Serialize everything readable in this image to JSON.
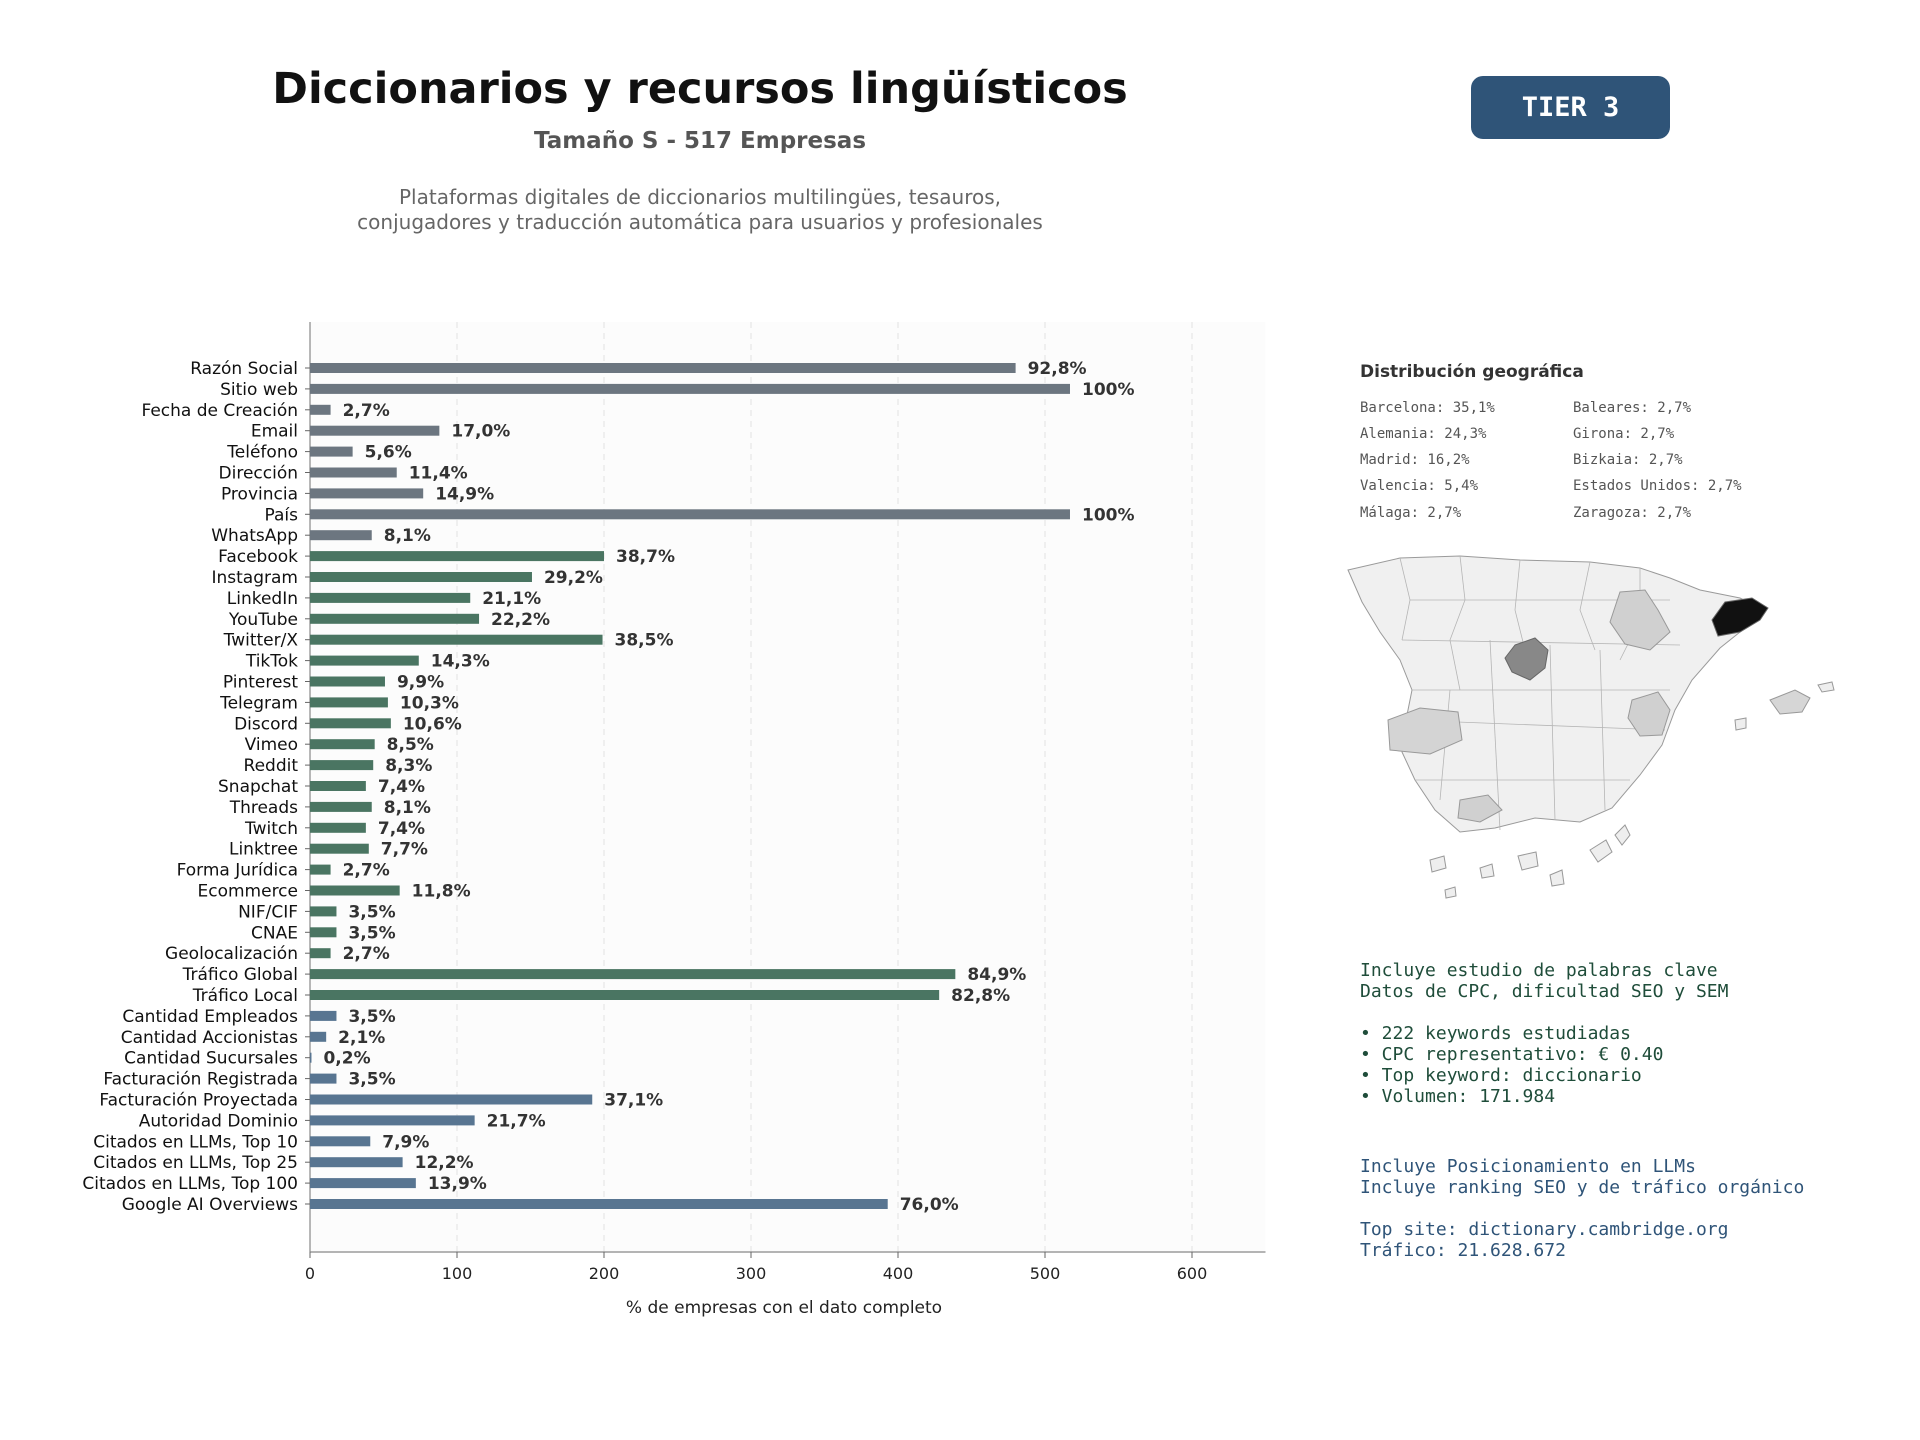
{
  "header": {
    "title": "Diccionarios y recursos lingüísticos",
    "subtitle": "Tamaño S - 517 Empresas",
    "description_line1": "Plataformas digitales de diccionarios multilingües, tesauros,",
    "description_line2": "conjugadores y traducción automática para usuarios y profesionales",
    "tier": "TIER 3"
  },
  "colors": {
    "gray": "#6c7680",
    "green": "#4a7562",
    "blue": "#587591",
    "tier_bg": "#2f5478"
  },
  "chart_data": {
    "type": "bar",
    "orientation": "horizontal",
    "xlabel": "% de empresas con el dato completo",
    "xlim": [
      0,
      650
    ],
    "xticks": [
      0,
      100,
      200,
      300,
      400,
      500,
      600
    ],
    "grid": true,
    "categories": [
      "Razón Social",
      "Sitio web",
      "Fecha de Creación",
      "Email",
      "Teléfono",
      "Dirección",
      "Provincia",
      "País",
      "WhatsApp",
      "Facebook",
      "Instagram",
      "LinkedIn",
      "YouTube",
      "Twitter/X",
      "TikTok",
      "Pinterest",
      "Telegram",
      "Discord",
      "Vimeo",
      "Reddit",
      "Snapchat",
      "Threads",
      "Twitch",
      "Linktree",
      "Forma Jurídica",
      "Ecommerce",
      "NIF/CIF",
      "CNAE",
      "Geolocalización",
      "Tráfico Global",
      "Tráfico Local",
      "Cantidad Empleados",
      "Cantidad Accionistas",
      "Cantidad Sucursales",
      "Facturación Registrada",
      "Facturación Proyectada",
      "Autoridad Dominio",
      "Citados en LLMs, Top 10",
      "Citados en LLMs, Top 25",
      "Citados en LLMs, Top 100",
      "Google AI Overviews"
    ],
    "values": [
      480,
      517,
      14,
      88,
      29,
      59,
      77,
      517,
      42,
      200,
      151,
      109,
      115,
      199,
      74,
      51,
      53,
      55,
      44,
      43,
      38,
      42,
      38,
      40,
      14,
      61,
      18,
      18,
      14,
      439,
      428,
      18,
      11,
      1,
      18,
      192,
      112,
      41,
      63,
      72,
      393
    ],
    "labels": [
      "92,8%",
      "100%",
      "2,7%",
      "17,0%",
      "5,6%",
      "11,4%",
      "14,9%",
      "100%",
      "8,1%",
      "38,7%",
      "29,2%",
      "21,1%",
      "22,2%",
      "38,5%",
      "14,3%",
      "9,9%",
      "10,3%",
      "10,6%",
      "8,5%",
      "8,3%",
      "7,4%",
      "8,1%",
      "7,4%",
      "7,7%",
      "2,7%",
      "11,8%",
      "3,5%",
      "3,5%",
      "2,7%",
      "84,9%",
      "82,8%",
      "3,5%",
      "2,1%",
      "0,2%",
      "3,5%",
      "37,1%",
      "21,7%",
      "7,9%",
      "12,2%",
      "13,9%",
      "76,0%"
    ],
    "groups": [
      "gray",
      "gray",
      "gray",
      "gray",
      "gray",
      "gray",
      "gray",
      "gray",
      "gray",
      "green",
      "green",
      "green",
      "green",
      "green",
      "green",
      "green",
      "green",
      "green",
      "green",
      "green",
      "green",
      "green",
      "green",
      "green",
      "green",
      "green",
      "green",
      "green",
      "green",
      "green",
      "green",
      "blue",
      "blue",
      "blue",
      "blue",
      "blue",
      "blue",
      "blue",
      "blue",
      "blue",
      "blue"
    ]
  },
  "geo": {
    "title": "Distribución geográfica",
    "left": [
      "Barcelona: 35,1%",
      "Alemania: 24,3%",
      "Madrid: 16,2%",
      "Valencia: 5,4%",
      "Málaga: 2,7%"
    ],
    "right": [
      "Baleares: 2,7%",
      "Girona: 2,7%",
      "Bizkaia: 2,7%",
      "Estados Unidos: 2,7%",
      "Zaragoza: 2,7%"
    ]
  },
  "seo": {
    "line1": "Incluye estudio de palabras clave",
    "line2": "Datos de CPC, dificultad SEO y SEM",
    "bullet1": "• 222 keywords estudiadas",
    "bullet2": "• CPC representativo: € 0.40",
    "bullet3": "• Top keyword: diccionario",
    "bullet4": "• Volumen: 171.984"
  },
  "llm": {
    "line1": "Incluye Posicionamiento en LLMs",
    "line2": "Incluye ranking SEO y de tráfico orgánico",
    "line3": "Top site: dictionary.cambridge.org",
    "line4": "Tráfico: 21.628.672"
  }
}
